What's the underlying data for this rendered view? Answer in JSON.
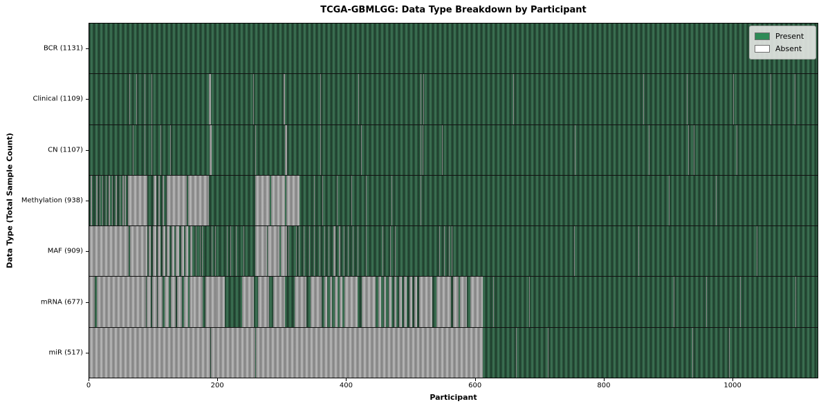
{
  "chart_data": {
    "type": "heatmap",
    "title": "TCGA-GBMLGG: Data Type Breakdown by Participant",
    "xlabel": "Participant",
    "ylabel": "Data Type (Total Sample Count)",
    "x_ticks": [
      0,
      200,
      400,
      600,
      800,
      1000
    ],
    "xlim": [
      0,
      1133
    ],
    "n_participants": 1131,
    "grid": false,
    "legend_position": "upper right",
    "legend": [
      {
        "label": "Present",
        "color": "#2e8b57"
      },
      {
        "label": "Absent",
        "color": "#ffffff"
      }
    ],
    "cell_colors": {
      "present_avg": "#2e5d43",
      "absent_avg": "#9e9e9e"
    },
    "rows": [
      {
        "label": "BCR (1131)",
        "present_count": 1131,
        "absent_ranges": []
      },
      {
        "label": "Clinical (1109)",
        "present_count": 1109,
        "absent_ranges": [
          [
            62,
            63
          ],
          [
            73,
            74
          ],
          [
            86,
            87
          ],
          [
            97,
            98
          ],
          [
            186,
            189
          ],
          [
            255,
            256
          ],
          [
            302,
            305
          ],
          [
            359,
            360
          ],
          [
            419,
            420
          ],
          [
            515,
            516
          ],
          [
            520,
            521
          ],
          [
            545,
            546
          ],
          [
            660,
            661
          ],
          [
            862,
            863
          ],
          [
            930,
            931
          ],
          [
            1002,
            1003
          ],
          [
            1060,
            1061
          ],
          [
            1098,
            1099
          ]
        ]
      },
      {
        "label": "CN (1107)",
        "present_count": 1107,
        "absent_ranges": [
          [
            68,
            69
          ],
          [
            86,
            87
          ],
          [
            97,
            98
          ],
          [
            111,
            112
          ],
          [
            126,
            127
          ],
          [
            187,
            190
          ],
          [
            258,
            259
          ],
          [
            305,
            308
          ],
          [
            359,
            360
          ],
          [
            423,
            424
          ],
          [
            515,
            517
          ],
          [
            519,
            520
          ],
          [
            549,
            550
          ],
          [
            700,
            701
          ],
          [
            755,
            756
          ],
          [
            871,
            872
          ],
          [
            932,
            933
          ],
          [
            940,
            941
          ],
          [
            1007,
            1008
          ]
        ]
      },
      {
        "label": "Methylation (938)",
        "present_count": 938,
        "absent_ranges": [
          [
            2,
            4
          ],
          [
            7,
            8
          ],
          [
            11,
            13
          ],
          [
            16,
            17
          ],
          [
            20,
            22
          ],
          [
            26,
            27
          ],
          [
            30,
            32
          ],
          [
            36,
            37
          ],
          [
            41,
            43
          ],
          [
            47,
            48
          ],
          [
            52,
            54
          ],
          [
            55,
            57
          ],
          [
            60,
            90
          ],
          [
            100,
            104
          ],
          [
            108,
            110
          ],
          [
            114,
            116
          ],
          [
            120,
            152
          ],
          [
            154,
            186
          ],
          [
            258,
            281
          ],
          [
            283,
            305
          ],
          [
            307,
            327
          ],
          [
            350,
            351
          ],
          [
            363,
            364
          ],
          [
            385,
            386
          ],
          [
            408,
            409
          ],
          [
            430,
            431
          ],
          [
            470,
            471
          ],
          [
            515,
            516
          ],
          [
            545,
            546
          ],
          [
            902,
            903
          ],
          [
            975,
            976
          ]
        ]
      },
      {
        "label": "MAF (909)",
        "present_count": 909,
        "absent_ranges": [
          [
            0,
            7
          ],
          [
            8,
            61
          ],
          [
            63,
            90
          ],
          [
            92,
            96
          ],
          [
            99,
            104
          ],
          [
            107,
            111
          ],
          [
            114,
            118
          ],
          [
            121,
            125
          ],
          [
            128,
            132
          ],
          [
            135,
            140
          ],
          [
            143,
            147
          ],
          [
            150,
            154
          ],
          [
            157,
            160
          ],
          [
            166,
            167
          ],
          [
            172,
            173
          ],
          [
            175,
            177
          ],
          [
            190,
            191
          ],
          [
            196,
            197
          ],
          [
            205,
            206
          ],
          [
            214,
            215
          ],
          [
            220,
            221
          ],
          [
            228,
            229
          ],
          [
            240,
            241
          ],
          [
            247,
            248
          ],
          [
            258,
            276
          ],
          [
            278,
            296
          ],
          [
            298,
            308
          ],
          [
            310,
            311
          ],
          [
            318,
            319
          ],
          [
            322,
            323
          ],
          [
            326,
            327
          ],
          [
            334,
            335
          ],
          [
            342,
            343
          ],
          [
            350,
            351
          ],
          [
            358,
            359
          ],
          [
            366,
            367
          ],
          [
            372,
            373
          ],
          [
            380,
            383
          ],
          [
            388,
            391
          ],
          [
            396,
            397
          ],
          [
            402,
            403
          ],
          [
            410,
            411
          ],
          [
            418,
            419
          ],
          [
            430,
            431
          ],
          [
            446,
            447
          ],
          [
            456,
            457
          ],
          [
            468,
            469
          ],
          [
            476,
            477
          ],
          [
            488,
            489
          ],
          [
            502,
            503
          ],
          [
            516,
            517
          ],
          [
            530,
            531
          ],
          [
            544,
            545
          ],
          [
            552,
            553
          ],
          [
            560,
            561
          ],
          [
            564,
            565
          ],
          [
            754,
            755
          ],
          [
            854,
            855
          ],
          [
            1038,
            1039
          ]
        ]
      },
      {
        "label": "mRNA (677)",
        "present_count": 677,
        "absent_ranges": [
          [
            0,
            9
          ],
          [
            12,
            88
          ],
          [
            89,
            96
          ],
          [
            98,
            105
          ],
          [
            107,
            114
          ],
          [
            117,
            124
          ],
          [
            127,
            134
          ],
          [
            137,
            144
          ],
          [
            147,
            154
          ],
          [
            156,
            160
          ],
          [
            160,
            177
          ],
          [
            181,
            198
          ],
          [
            198,
            211
          ],
          [
            238,
            256
          ],
          [
            262,
            280
          ],
          [
            286,
            304
          ],
          [
            320,
            338
          ],
          [
            344,
            362
          ],
          [
            366,
            370
          ],
          [
            374,
            378
          ],
          [
            382,
            386
          ],
          [
            390,
            394
          ],
          [
            397,
            418
          ],
          [
            424,
            446
          ],
          [
            450,
            454
          ],
          [
            458,
            462
          ],
          [
            466,
            470
          ],
          [
            474,
            478
          ],
          [
            482,
            486
          ],
          [
            490,
            494
          ],
          [
            498,
            502
          ],
          [
            506,
            510
          ],
          [
            513,
            534
          ],
          [
            540,
            563
          ],
          [
            566,
            575
          ],
          [
            577,
            587
          ],
          [
            593,
            612
          ],
          [
            628,
            629
          ],
          [
            684,
            685
          ],
          [
            909,
            910
          ],
          [
            960,
            961
          ],
          [
            1013,
            1014
          ],
          [
            1099,
            1100
          ]
        ]
      },
      {
        "label": "miR (517)",
        "present_count": 517,
        "absent_ranges": [
          [
            0,
            188
          ],
          [
            189,
            258
          ],
          [
            259,
            612
          ],
          [
            664,
            665
          ],
          [
            713,
            714
          ],
          [
            938,
            939
          ],
          [
            995,
            996
          ]
        ]
      }
    ]
  }
}
